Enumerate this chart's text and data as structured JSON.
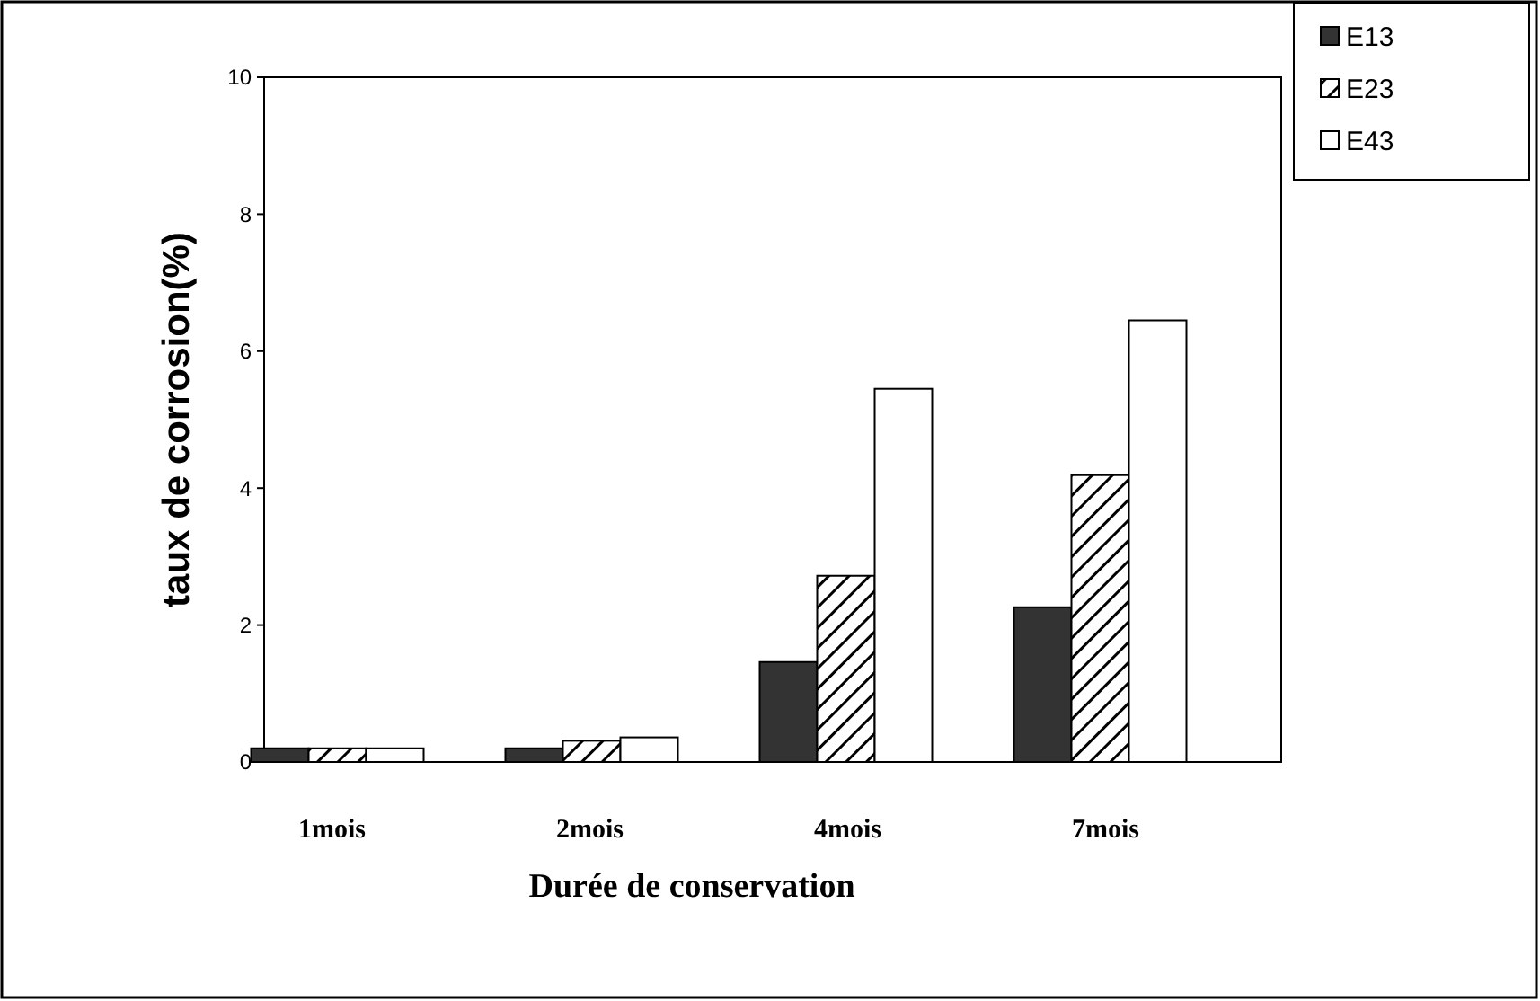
{
  "chart_data": {
    "type": "bar",
    "xlabel": "Durée de conservation",
    "ylabel": "taux de corrosion(%)",
    "categories": [
      "1mois",
      "2mois",
      "4mois",
      "7mois"
    ],
    "series": [
      {
        "name": "E13",
        "color": "#333333",
        "values": [
          0.2,
          0.2,
          1.46,
          2.26
        ]
      },
      {
        "name": "E23",
        "color": "#000000",
        "values": [
          0.2,
          0.31,
          2.72,
          4.19
        ]
      },
      {
        "name": "E43",
        "color": "#ffffff",
        "values": [
          0.2,
          0.36,
          5.45,
          6.45
        ]
      }
    ],
    "ylim": [
      0,
      10
    ],
    "yticks": [
      0,
      2,
      4,
      6,
      8,
      10
    ],
    "grid": false,
    "legend": "top right"
  }
}
